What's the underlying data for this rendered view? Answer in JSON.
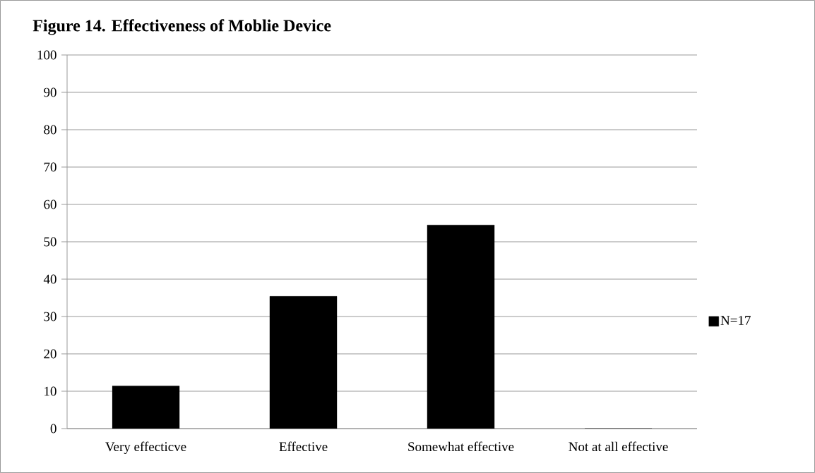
{
  "chart_data": {
    "type": "bar",
    "title": "Figure 14. Effectiveness of Moblie Device",
    "categories": [
      "Very effecticve",
      "Effective",
      "Somewhat effective",
      "Not at all effective"
    ],
    "series": [
      {
        "name": "N=17",
        "color": "#000000",
        "values": [
          11.4,
          35.4,
          54.5,
          0
        ]
      }
    ],
    "ylim": [
      0,
      100
    ],
    "yticks": [
      0,
      10,
      20,
      30,
      40,
      50,
      60,
      70,
      80,
      90,
      100
    ],
    "grid": "y",
    "legend": "right"
  }
}
